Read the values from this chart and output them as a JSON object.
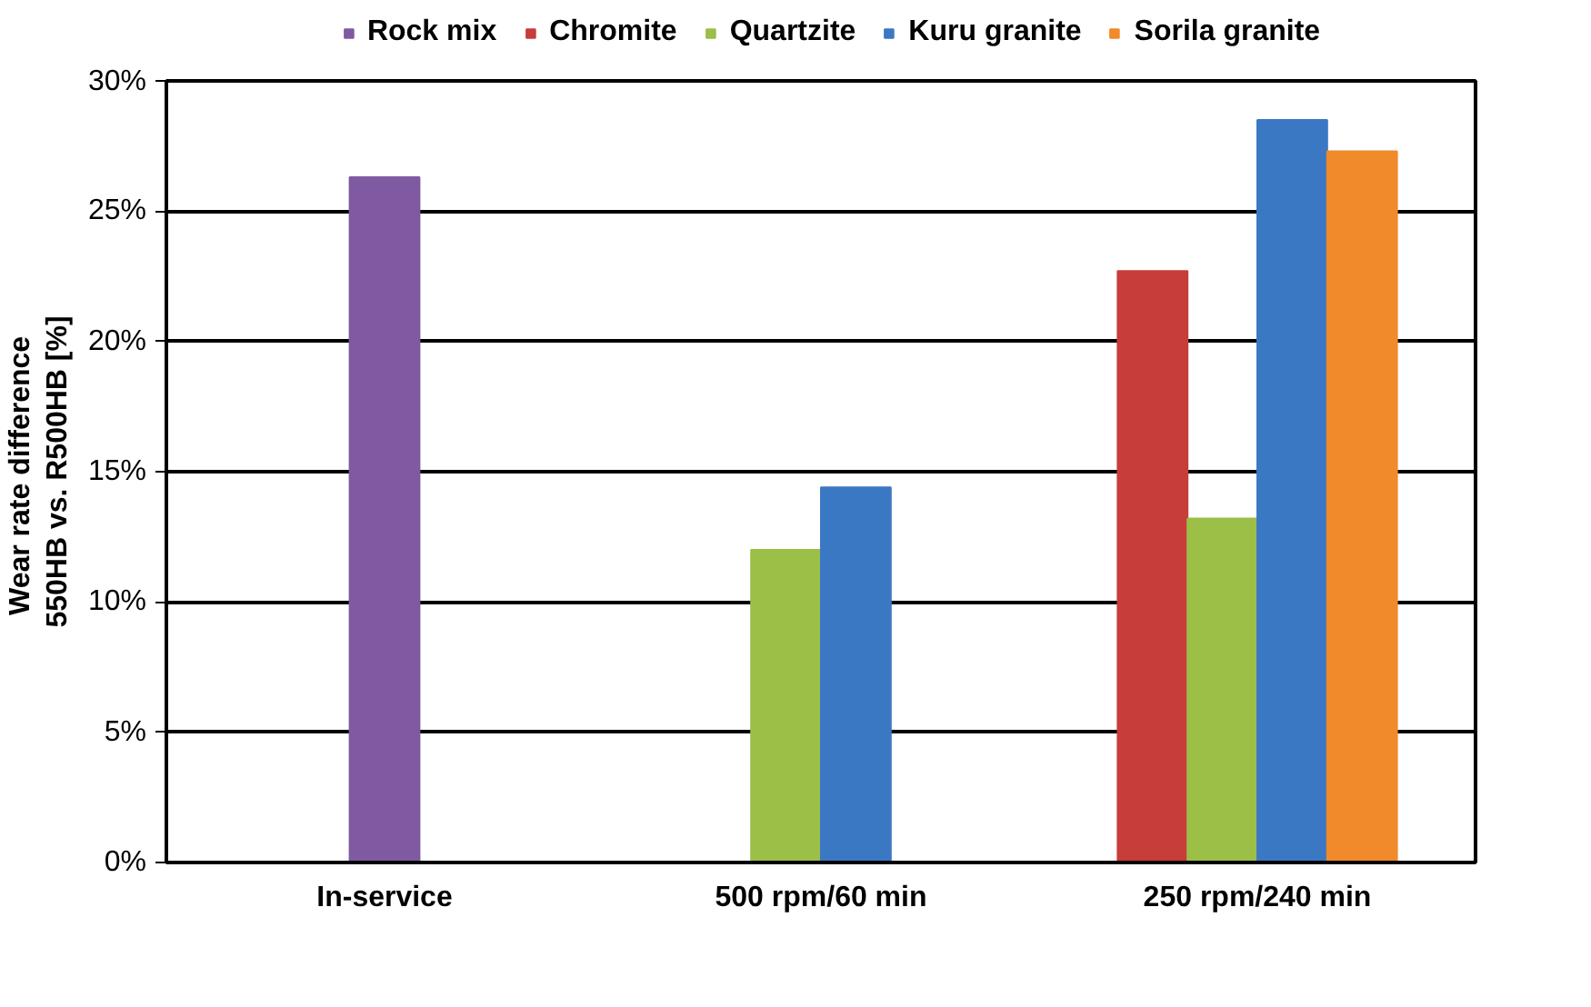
{
  "chart_data": {
    "type": "bar",
    "ylabel": "Wear rate  difference\n550HB vs. R500HB [%]",
    "categories": [
      "In-service",
      "500 rpm/60 min",
      "250 rpm/240 min"
    ],
    "series": [
      {
        "name": "Rock mix",
        "color": "#7f5aa2",
        "values": [
          26.3,
          null,
          null
        ]
      },
      {
        "name": "Chromite",
        "color": "#c63d3a",
        "values": [
          null,
          null,
          22.7
        ]
      },
      {
        "name": "Quartzite",
        "color": "#9bbf47",
        "values": [
          null,
          12.0,
          13.2
        ]
      },
      {
        "name": "Kuru granite",
        "color": "#3b78c4",
        "values": [
          null,
          14.4,
          28.5
        ]
      },
      {
        "name": "Sorila granite",
        "color": "#f08a2a",
        "values": [
          null,
          null,
          27.3
        ]
      }
    ],
    "ylim": [
      0,
      30
    ],
    "yticks": [
      {
        "value": 0,
        "label": "0%"
      },
      {
        "value": 5,
        "label": "5%"
      },
      {
        "value": 10,
        "label": "10%"
      },
      {
        "value": 15,
        "label": "15%"
      },
      {
        "value": 20,
        "label": "20%"
      },
      {
        "value": 25,
        "label": "25%"
      },
      {
        "value": 30,
        "label": "30%"
      }
    ],
    "grid": "y",
    "legend": "top"
  }
}
